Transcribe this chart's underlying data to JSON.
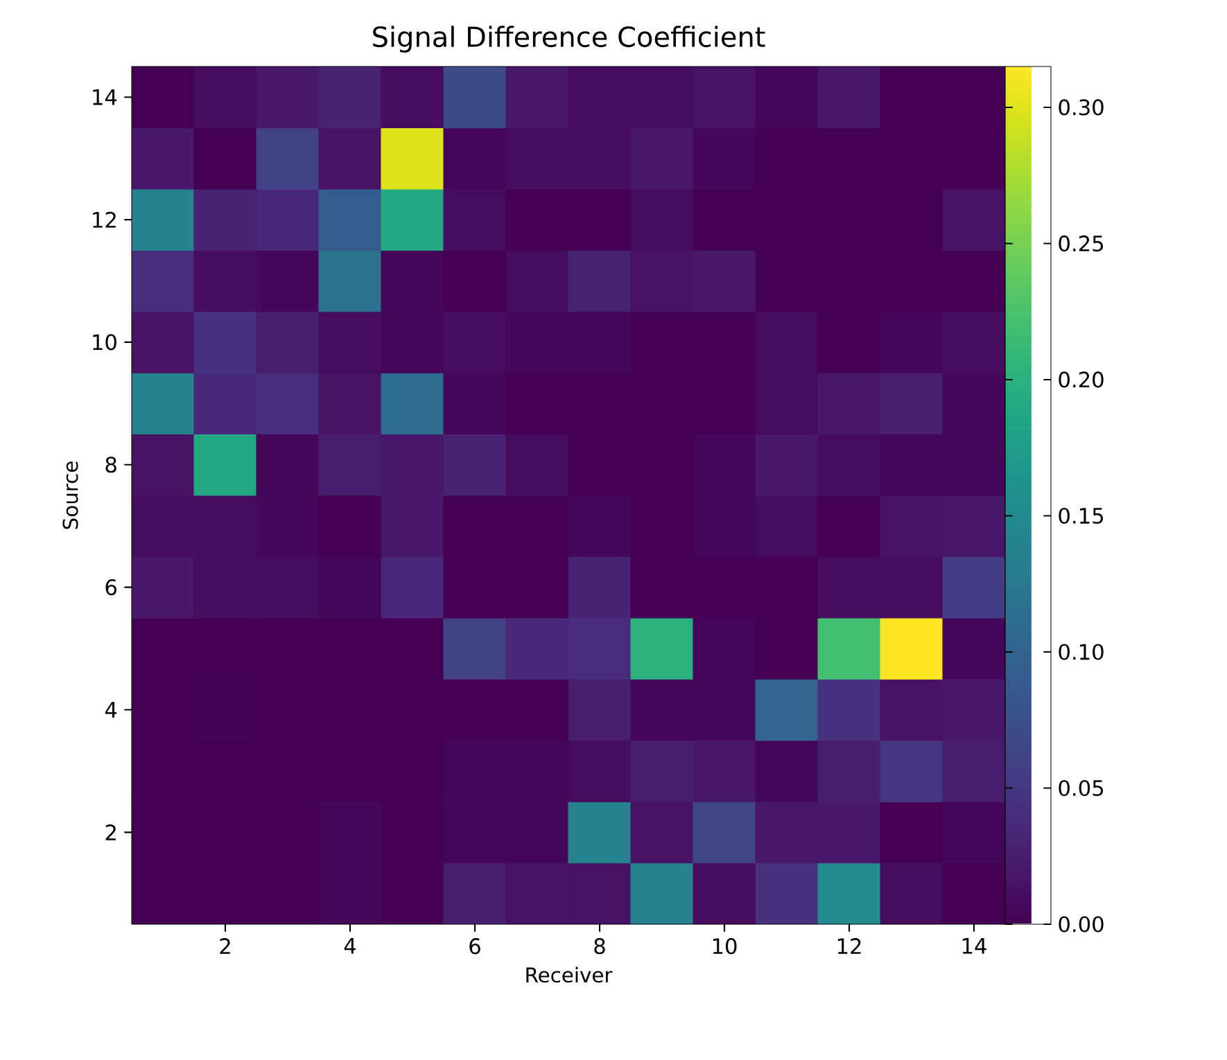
{
  "chart_data": {
    "type": "heatmap",
    "title": "Signal Difference Coefficient",
    "xlabel": "Receiver",
    "ylabel": "Source",
    "categories": [
      null,
      "2",
      null,
      "4",
      null,
      "6",
      null,
      "8",
      null,
      "10",
      null,
      "12",
      null,
      "14"
    ],
    "y_categories": [
      "14",
      null,
      "12",
      null,
      "10",
      null,
      "8",
      null,
      "6",
      null,
      "4",
      null,
      "2",
      null
    ],
    "cells": [
      [
        0.0,
        0.01,
        0.02,
        0.03,
        0.01,
        0.07,
        0.02,
        0.01,
        0.01,
        0.015,
        0.005,
        0.02,
        0.0,
        0.0
      ],
      [
        0.02,
        0.0,
        0.06,
        0.015,
        0.3,
        0.005,
        0.01,
        0.01,
        0.02,
        0.005,
        0.0,
        0.0,
        0.0,
        0.0
      ],
      [
        0.14,
        0.03,
        0.035,
        0.09,
        0.19,
        0.01,
        0.0,
        0.0,
        0.01,
        0.0,
        0.0,
        0.0,
        0.0,
        0.015
      ],
      [
        0.04,
        0.01,
        0.005,
        0.12,
        0.005,
        0.0,
        0.01,
        0.03,
        0.015,
        0.02,
        0.0,
        0.0,
        0.0,
        0.0
      ],
      [
        0.015,
        0.045,
        0.025,
        0.01,
        0.005,
        0.01,
        0.005,
        0.005,
        0.0,
        0.0,
        0.01,
        0.0,
        0.005,
        0.01
      ],
      [
        0.14,
        0.035,
        0.04,
        0.015,
        0.11,
        0.005,
        0.0,
        0.0,
        0.0,
        0.0,
        0.01,
        0.02,
        0.025,
        0.005
      ],
      [
        0.015,
        0.19,
        0.005,
        0.025,
        0.02,
        0.03,
        0.01,
        0.0,
        0.0,
        0.005,
        0.02,
        0.01,
        0.005,
        0.005
      ],
      [
        0.01,
        0.01,
        0.005,
        0.0,
        0.02,
        0.0,
        0.0,
        0.005,
        0.0,
        0.005,
        0.01,
        0.0,
        0.015,
        0.02
      ],
      [
        0.02,
        0.01,
        0.01,
        0.005,
        0.035,
        0.0,
        0.0,
        0.03,
        0.0,
        0.0,
        0.0,
        0.01,
        0.01,
        0.055
      ],
      [
        0.0,
        0.0,
        0.0,
        0.0,
        0.0,
        0.06,
        0.035,
        0.04,
        0.2,
        0.005,
        0.0,
        0.22,
        0.315,
        0.005
      ],
      [
        0.0,
        0.003,
        0.0,
        0.0,
        0.0,
        0.0,
        0.0,
        0.025,
        0.005,
        0.005,
        0.1,
        0.045,
        0.015,
        0.02
      ],
      [
        0.0,
        0.0,
        0.0,
        0.0,
        0.0,
        0.005,
        0.005,
        0.01,
        0.025,
        0.02,
        0.005,
        0.025,
        0.05,
        0.025
      ],
      [
        0.0,
        0.0,
        0.0,
        0.005,
        0.0,
        0.005,
        0.005,
        0.14,
        0.015,
        0.065,
        0.02,
        0.02,
        0.0,
        0.005
      ],
      [
        0.0,
        0.0,
        0.0,
        0.005,
        0.0,
        0.025,
        0.015,
        0.015,
        0.14,
        0.01,
        0.045,
        0.15,
        0.01,
        0.0
      ]
    ],
    "clim": [
      0,
      0.315
    ],
    "cticks": [
      {
        "value": 0,
        "label": "0.00"
      },
      {
        "value": 0.05,
        "label": "0.05"
      },
      {
        "value": 0.1,
        "label": "0.10"
      },
      {
        "value": 0.15,
        "label": "0.15"
      },
      {
        "value": 0.2,
        "label": "0.20"
      },
      {
        "value": 0.25,
        "label": "0.25"
      },
      {
        "value": 0.3,
        "label": "0.30"
      }
    ]
  }
}
